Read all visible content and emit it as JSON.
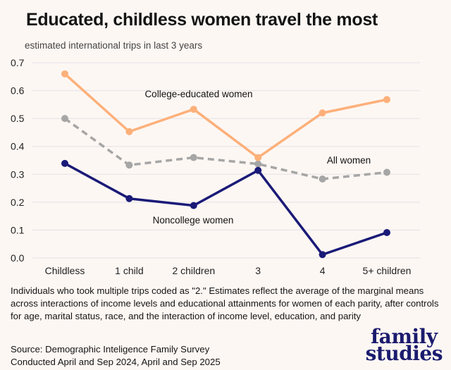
{
  "title": "Educated, childless women travel the most",
  "subtitle": "estimated international trips in last 3 years",
  "note": "Individuals who took multiple trips coded as \"2.\" Estimates reflect the average of the marginal means across interactions of income levels and educational attainments for women of each parity, after controls for age, marital status, race, and the interaction of income level, education, and parity",
  "source_line1": "Source: Demographic Inteligence Family Survey",
  "source_line2": "Conducted April and Sep 2024, April and Sep 2025",
  "logo": {
    "line1": "family",
    "line2": "studies",
    "color": "#1b1b6e"
  },
  "colors": {
    "background": "#fdf7f3",
    "grid": "#e8e6ea"
  },
  "chart_data": {
    "type": "line",
    "title": "Educated, childless women travel the most",
    "subtitle": "estimated international trips in last 3 years",
    "xlabel": "",
    "ylabel": "estimated international trips in last 3 years",
    "categories": [
      "Childless",
      "1 child",
      "2 children",
      "3",
      "4",
      "5+ children"
    ],
    "ylim": [
      0,
      0.7
    ],
    "yticks": [
      "0.0",
      "0.1",
      "0.2",
      "0.3",
      "0.4",
      "0.5",
      "0.6",
      "0.7"
    ],
    "grid": true,
    "legend": "inline labels",
    "series": [
      {
        "name": "College-educated women",
        "color": "#fdb07a",
        "dash": false,
        "values": [
          0.66,
          0.453,
          0.533,
          0.36,
          0.52,
          0.568
        ]
      },
      {
        "name": "All women",
        "color": "#a6a6a6",
        "dash": true,
        "values": [
          0.5,
          0.333,
          0.36,
          0.337,
          0.283,
          0.307
        ]
      },
      {
        "name": "Noncollege women",
        "color": "#1a1a78",
        "dash": false,
        "values": [
          0.339,
          0.213,
          0.188,
          0.314,
          0.012,
          0.091
        ]
      }
    ]
  }
}
